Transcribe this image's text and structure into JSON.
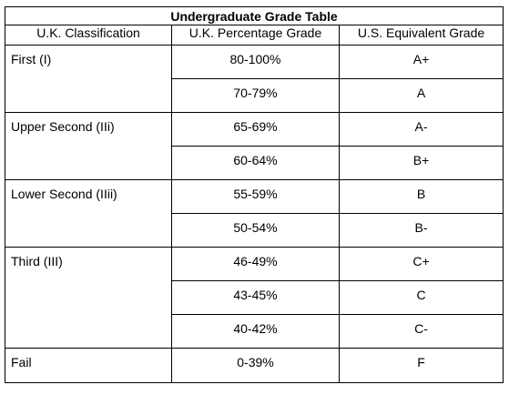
{
  "title": "Undergraduate Grade Table",
  "headers": {
    "classification": "U.K. Classification",
    "percentage": "U.K. Percentage Grade",
    "us_equivalent": "U.S. Equivalent Grade"
  },
  "groups": [
    {
      "classification": "First (I)",
      "rows": [
        {
          "percentage": "80-100%",
          "us": "A+"
        },
        {
          "percentage": "70-79%",
          "us": "A"
        }
      ]
    },
    {
      "classification": "Upper Second (IIi)",
      "rows": [
        {
          "percentage": "65-69%",
          "us": "A-"
        },
        {
          "percentage": "60-64%",
          "us": "B+"
        }
      ]
    },
    {
      "classification": "Lower Second (IIii)",
      "rows": [
        {
          "percentage": "55-59%",
          "us": "B"
        },
        {
          "percentage": "50-54%",
          "us": "B-"
        }
      ]
    },
    {
      "classification": "Third (III)",
      "rows": [
        {
          "percentage": "46-49%",
          "us": "C+"
        },
        {
          "percentage": "43-45%",
          "us": "C"
        },
        {
          "percentage": "40-42%",
          "us": "C-"
        }
      ]
    },
    {
      "classification": "Fail",
      "rows": [
        {
          "percentage": "0-39%",
          "us": "F"
        }
      ]
    }
  ]
}
